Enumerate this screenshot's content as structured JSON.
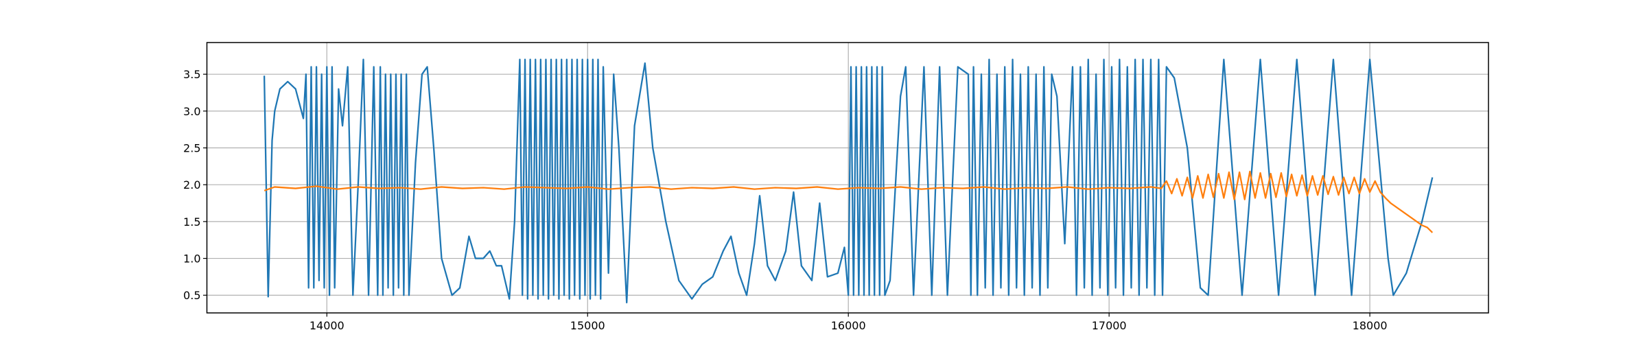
{
  "chart_data": {
    "type": "line",
    "grid": true,
    "xlim": [
      13540,
      18455
    ],
    "ylim": [
      0.26,
      3.93
    ],
    "xticks": [
      14000,
      15000,
      16000,
      17000,
      18000
    ],
    "yticks": [
      0.5,
      {
        "value": 1,
        "label": "1.0"
      },
      1.5,
      {
        "value": 2,
        "label": "2.0"
      },
      2.5,
      {
        "value": 3,
        "label": "3.0"
      },
      3.5
    ],
    "series": [
      {
        "color": "#1f77b4",
        "x": [
          13760,
          13775,
          13790,
          13800,
          13820,
          13850,
          13880,
          13910,
          13920,
          13930,
          13940,
          13950,
          13960,
          13970,
          13980,
          13990,
          14000,
          14010,
          14020,
          14030,
          14045,
          14060,
          14080,
          14100,
          14120,
          14140,
          14160,
          14180,
          14195,
          14205,
          14215,
          14225,
          14235,
          14245,
          14255,
          14265,
          14275,
          14285,
          14295,
          14305,
          14315,
          14340,
          14365,
          14385,
          14410,
          14440,
          14480,
          14510,
          14545,
          14570,
          14600,
          14625,
          14650,
          14670,
          14700,
          14720,
          14740,
          14750,
          14760,
          14770,
          14780,
          14790,
          14800,
          14810,
          14820,
          14830,
          14840,
          14850,
          14860,
          14870,
          14880,
          14890,
          14900,
          14910,
          14920,
          14930,
          14940,
          14950,
          14960,
          14970,
          14980,
          14990,
          15000,
          15010,
          15020,
          15030,
          15040,
          15050,
          15060,
          15080,
          15100,
          15120,
          15150,
          15180,
          15220,
          15250,
          15300,
          15350,
          15400,
          15440,
          15480,
          15520,
          15550,
          15580,
          15610,
          15640,
          15660,
          15690,
          15720,
          15760,
          15790,
          15820,
          15860,
          15890,
          15920,
          15960,
          15985,
          16000,
          16010,
          16020,
          16030,
          16040,
          16050,
          16060,
          16070,
          16080,
          16090,
          16100,
          16110,
          16120,
          16130,
          16140,
          16160,
          16200,
          16220,
          16250,
          16290,
          16320,
          16350,
          16380,
          16420,
          16460,
          16470,
          16480,
          16495,
          16510,
          16525,
          16540,
          16555,
          16570,
          16585,
          16600,
          16615,
          16630,
          16645,
          16660,
          16675,
          16690,
          16705,
          16720,
          16735,
          16750,
          16765,
          16780,
          16800,
          16830,
          16860,
          16875,
          16890,
          16905,
          16920,
          16935,
          16950,
          16965,
          16980,
          16995,
          17010,
          17025,
          17040,
          17055,
          17070,
          17085,
          17100,
          17115,
          17130,
          17145,
          17160,
          17175,
          17190,
          17205,
          17220,
          17250,
          17300,
          17350,
          17380,
          17440,
          17510,
          17580,
          17650,
          17720,
          17790,
          17860,
          17930,
          18000,
          18070,
          18090,
          18140,
          18200,
          18240
        ],
        "values": [
          3.48,
          0.48,
          2.6,
          3.0,
          3.3,
          3.4,
          3.3,
          2.9,
          3.5,
          0.6,
          3.6,
          0.6,
          3.6,
          0.7,
          3.5,
          0.6,
          3.6,
          0.5,
          3.6,
          0.6,
          3.3,
          2.8,
          3.6,
          0.5,
          2.0,
          3.7,
          0.5,
          3.6,
          0.5,
          3.6,
          0.5,
          3.5,
          0.6,
          3.5,
          0.5,
          3.5,
          0.6,
          3.5,
          0.5,
          3.5,
          0.5,
          2.3,
          3.5,
          3.6,
          2.5,
          1.0,
          0.5,
          0.6,
          1.3,
          1.0,
          1.0,
          1.1,
          0.9,
          0.9,
          0.45,
          1.5,
          3.7,
          0.5,
          3.7,
          0.45,
          3.7,
          0.5,
          3.7,
          0.45,
          3.7,
          0.5,
          3.7,
          0.45,
          3.7,
          0.5,
          3.7,
          0.45,
          3.7,
          0.5,
          3.7,
          0.45,
          3.7,
          0.5,
          3.7,
          0.45,
          3.7,
          0.5,
          3.7,
          0.45,
          3.7,
          0.5,
          3.7,
          0.45,
          3.6,
          0.8,
          3.5,
          2.5,
          0.4,
          2.8,
          3.65,
          2.5,
          1.5,
          0.7,
          0.45,
          0.65,
          0.75,
          1.1,
          1.3,
          0.8,
          0.5,
          1.2,
          1.85,
          0.9,
          0.7,
          1.1,
          1.9,
          0.9,
          0.7,
          1.75,
          0.75,
          0.8,
          1.15,
          0.5,
          3.6,
          0.5,
          3.6,
          0.5,
          3.6,
          0.5,
          3.6,
          0.5,
          3.6,
          0.5,
          3.6,
          0.5,
          3.6,
          0.5,
          0.7,
          3.2,
          3.6,
          0.5,
          3.6,
          0.5,
          3.6,
          0.5,
          3.6,
          3.5,
          0.5,
          3.6,
          0.5,
          3.5,
          0.6,
          3.7,
          0.5,
          3.5,
          0.6,
          3.6,
          0.5,
          3.7,
          0.6,
          3.5,
          0.5,
          3.6,
          0.6,
          3.5,
          0.5,
          3.6,
          0.6,
          3.5,
          3.2,
          1.2,
          3.6,
          0.5,
          3.6,
          0.6,
          3.7,
          0.5,
          3.5,
          0.6,
          3.7,
          0.5,
          3.6,
          0.6,
          3.7,
          0.5,
          3.6,
          0.6,
          3.7,
          0.5,
          3.7,
          0.6,
          3.7,
          0.5,
          3.7,
          0.5,
          3.6,
          3.45,
          2.5,
          0.6,
          0.5,
          3.7,
          0.5,
          3.7,
          0.5,
          3.7,
          0.5,
          3.7,
          0.5,
          3.7,
          1.0,
          0.5,
          0.8,
          1.5,
          2.1
        ]
      },
      {
        "color": "#ff7f0e",
        "x": [
          13760,
          13800,
          13880,
          13960,
          14040,
          14120,
          14200,
          14280,
          14360,
          14440,
          14520,
          14600,
          14680,
          14760,
          14840,
          14920,
          15000,
          15080,
          15160,
          15240,
          15320,
          15400,
          15480,
          15560,
          15640,
          15720,
          15800,
          15880,
          15960,
          16040,
          16120,
          16200,
          16280,
          16360,
          16440,
          16520,
          16600,
          16680,
          16760,
          16840,
          16920,
          17000,
          17080,
          17160,
          17200,
          17220,
          17240,
          17260,
          17280,
          17300,
          17320,
          17340,
          17360,
          17380,
          17400,
          17420,
          17440,
          17460,
          17480,
          17500,
          17520,
          17540,
          17560,
          17580,
          17600,
          17620,
          17640,
          17660,
          17680,
          17700,
          17720,
          17740,
          17760,
          17780,
          17800,
          17820,
          17840,
          17860,
          17880,
          17900,
          17920,
          17940,
          17960,
          17980,
          18000,
          18020,
          18040,
          18060,
          18080,
          18100,
          18120,
          18140,
          18160,
          18180,
          18200,
          18220,
          18240
        ],
        "values": [
          1.92,
          1.97,
          1.95,
          1.98,
          1.94,
          1.97,
          1.95,
          1.96,
          1.94,
          1.97,
          1.95,
          1.96,
          1.94,
          1.97,
          1.96,
          1.95,
          1.97,
          1.94,
          1.96,
          1.97,
          1.94,
          1.96,
          1.95,
          1.97,
          1.94,
          1.96,
          1.95,
          1.97,
          1.94,
          1.96,
          1.95,
          1.97,
          1.94,
          1.96,
          1.95,
          1.97,
          1.94,
          1.96,
          1.95,
          1.97,
          1.94,
          1.96,
          1.95,
          1.97,
          1.95,
          2.05,
          1.88,
          2.08,
          1.85,
          2.1,
          1.82,
          2.12,
          1.82,
          2.14,
          1.83,
          2.15,
          1.82,
          2.17,
          1.8,
          2.17,
          1.8,
          2.18,
          1.82,
          2.16,
          1.82,
          2.15,
          1.83,
          2.16,
          1.84,
          2.14,
          1.85,
          2.13,
          1.85,
          2.12,
          1.86,
          2.12,
          1.87,
          2.11,
          1.86,
          2.1,
          1.88,
          2.1,
          1.88,
          2.08,
          1.9,
          2.05,
          1.9,
          1.82,
          1.75,
          1.7,
          1.65,
          1.6,
          1.55,
          1.5,
          1.45,
          1.42,
          1.35
        ]
      }
    ]
  }
}
